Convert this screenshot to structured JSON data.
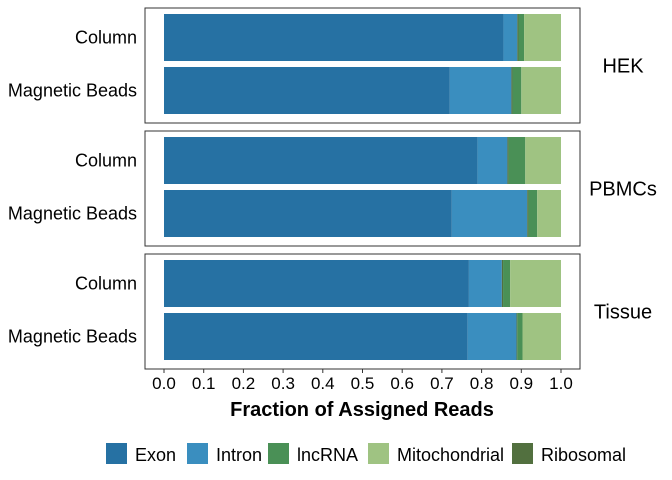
{
  "chart_data": {
    "type": "bar",
    "orientation": "horizontal",
    "stacked": true,
    "xlabel": "Fraction of Assigned Reads",
    "xlim": [
      0,
      1
    ],
    "xticks": [
      "0.0",
      "0.1",
      "0.2",
      "0.3",
      "0.4",
      "0.5",
      "0.6",
      "0.7",
      "0.8",
      "0.9",
      "1.0"
    ],
    "legend_position": "bottom",
    "grid": false,
    "series": [
      {
        "name": "Exon",
        "color": "#2671a3"
      },
      {
        "name": "Intron",
        "color": "#3a8ebf"
      },
      {
        "name": "lncRNA",
        "color": "#4a9056"
      },
      {
        "name": "Mitochondrial",
        "color": "#9fc382"
      },
      {
        "name": "Ribosomal",
        "color": "#52703f"
      }
    ],
    "facets": [
      {
        "name": "HEK",
        "categories": [
          "Column",
          "Magnetic Beads"
        ],
        "values": {
          "Column": {
            "Exon": 0.855,
            "Intron": 0.035,
            "Ribosomal": 0.003,
            "lncRNA": 0.014,
            "Mitochondrial": 0.093
          },
          "Magnetic Beads": {
            "Exon": 0.72,
            "Intron": 0.155,
            "Ribosomal": 0.003,
            "lncRNA": 0.022,
            "Mitochondrial": 0.1
          }
        }
      },
      {
        "name": "PBMCs",
        "categories": [
          "Column",
          "Magnetic Beads"
        ],
        "values": {
          "Column": {
            "Exon": 0.79,
            "Intron": 0.075,
            "Ribosomal": 0.003,
            "lncRNA": 0.042,
            "Mitochondrial": 0.09
          },
          "Magnetic Beads": {
            "Exon": 0.725,
            "Intron": 0.19,
            "Ribosomal": 0.003,
            "lncRNA": 0.022,
            "Mitochondrial": 0.06
          }
        }
      },
      {
        "name": "Tissue",
        "categories": [
          "Column",
          "Magnetic Beads"
        ],
        "values": {
          "Column": {
            "Exon": 0.768,
            "Intron": 0.083,
            "Ribosomal": 0.003,
            "lncRNA": 0.018,
            "Mitochondrial": 0.128
          },
          "Magnetic Beads": {
            "Exon": 0.765,
            "Intron": 0.123,
            "Ribosomal": 0.002,
            "lncRNA": 0.013,
            "Mitochondrial": 0.097
          }
        }
      }
    ]
  }
}
